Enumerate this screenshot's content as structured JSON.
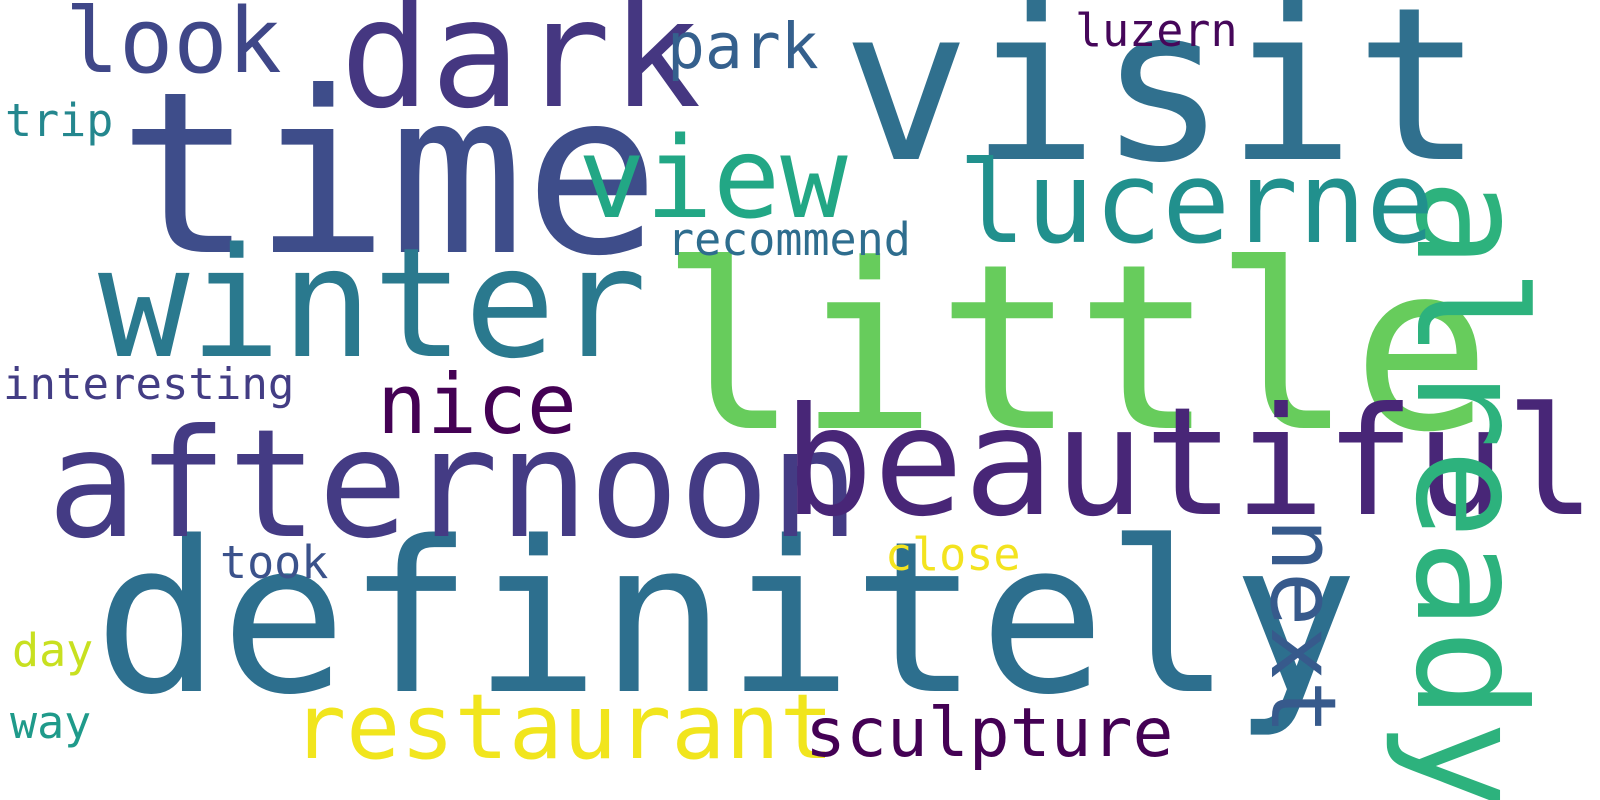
{
  "cloud": {
    "background": "#ffffff",
    "words": {
      "visit": {
        "text": "visit",
        "color": "#30708e"
      },
      "little": {
        "text": "little",
        "color": "#67cc5c"
      },
      "definitely": {
        "text": "definitely",
        "color": "#2d6f8e"
      },
      "time": {
        "text": "time",
        "color": "#3e4d8a"
      },
      "afternoon": {
        "text": "afternoon",
        "color": "#443b84"
      },
      "beautiful": {
        "text": "beautiful",
        "color": "#482677"
      },
      "winter": {
        "text": "winter",
        "color": "#2a798e"
      },
      "already": {
        "text": "already",
        "color": "#2db27d"
      },
      "dark": {
        "text": "dark",
        "color": "#453781"
      },
      "view": {
        "text": "view",
        "color": "#22a785"
      },
      "lucerne": {
        "text": "lucerne",
        "color": "#21908d"
      },
      "look": {
        "text": "look",
        "color": "#3f4788"
      },
      "restaurant": {
        "text": "restaurant",
        "color": "#f1e51d"
      },
      "next": {
        "text": "next",
        "color": "#375a8c"
      },
      "nice": {
        "text": "nice",
        "color": "#440154"
      },
      "sculpture": {
        "text": "sculpture",
        "color": "#440154"
      },
      "park": {
        "text": "park",
        "color": "#35608d"
      },
      "close": {
        "text": "close",
        "color": "#f3e31f"
      },
      "recommend": {
        "text": "recommend",
        "color": "#2e6d8e"
      },
      "luzern": {
        "text": "luzern",
        "color": "#46075a"
      },
      "interesting": {
        "text": "interesting",
        "color": "#433d84"
      },
      "took": {
        "text": "took",
        "color": "#3b528b"
      },
      "trip": {
        "text": "trip",
        "color": "#24878e"
      },
      "day": {
        "text": "day",
        "color": "#c8e020"
      },
      "way": {
        "text": "way",
        "color": "#1f9a8a"
      }
    }
  }
}
